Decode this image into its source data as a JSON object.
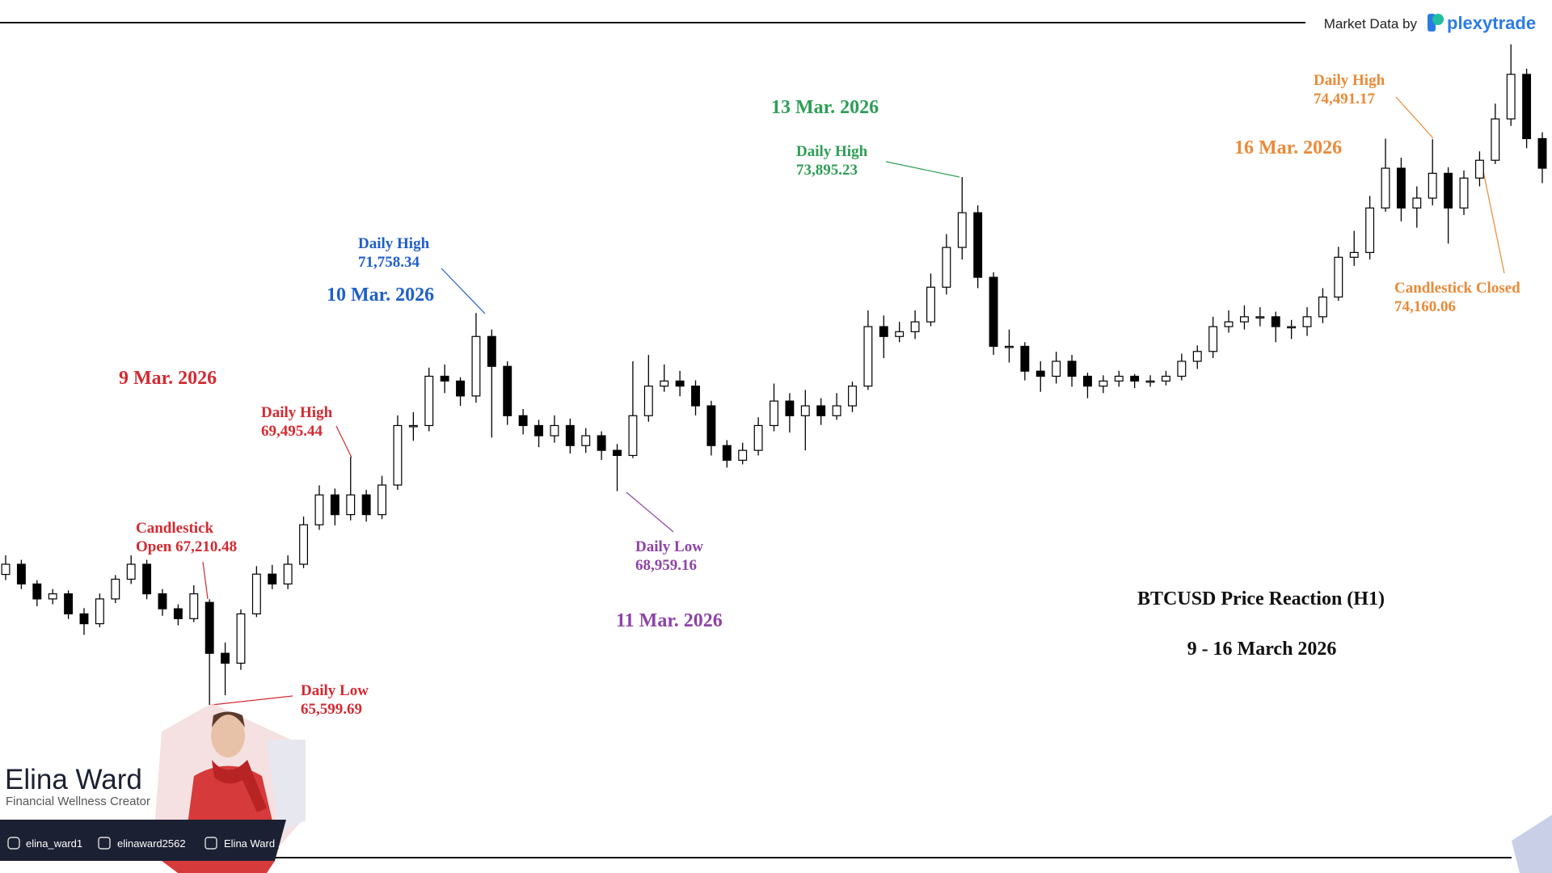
{
  "chart_data": {
    "type": "candlestick",
    "title": "BTCUSD Price Reaction (H1)",
    "subtitle": "9 - 16 March 2026",
    "bull_color": "#ffffff",
    "bear_color": "#000000",
    "edge_color": "#000000",
    "ohlc": [
      [
        67650,
        67950,
        67560,
        67810
      ],
      [
        67810,
        67880,
        67420,
        67500
      ],
      [
        67500,
        67560,
        67150,
        67265
      ],
      [
        67265,
        67420,
        67180,
        67345
      ],
      [
        67345,
        67400,
        66950,
        67030
      ],
      [
        67030,
        67120,
        66700,
        66875
      ],
      [
        66875,
        67350,
        66820,
        67265
      ],
      [
        67265,
        67640,
        67200,
        67575
      ],
      [
        67575,
        67950,
        67500,
        67810
      ],
      [
        67810,
        67880,
        67260,
        67345
      ],
      [
        67345,
        67420,
        67000,
        67110
      ],
      [
        67110,
        67180,
        66850,
        66955
      ],
      [
        66955,
        67480,
        66900,
        67345
      ],
      [
        67210.48,
        67260,
        65599.69,
        66410
      ],
      [
        66410,
        66580,
        65750,
        66255
      ],
      [
        66255,
        67100,
        66150,
        67030
      ],
      [
        67030,
        67780,
        66980,
        67655
      ],
      [
        67655,
        67800,
        67420,
        67500
      ],
      [
        67500,
        67950,
        67420,
        67810
      ],
      [
        67810,
        68560,
        67750,
        68430
      ],
      [
        68430,
        69050,
        68350,
        68900
      ],
      [
        68900,
        69000,
        68420,
        68590
      ],
      [
        68590,
        69495.44,
        68500,
        68900
      ],
      [
        68900,
        68980,
        68480,
        68590
      ],
      [
        68590,
        69200,
        68520,
        69055
      ],
      [
        69055,
        70150,
        68980,
        69990
      ],
      [
        69990,
        70200,
        69750,
        69990
      ],
      [
        69990,
        70900,
        69900,
        70765
      ],
      [
        70765,
        70950,
        70500,
        70690
      ],
      [
        70690,
        70750,
        70300,
        70455
      ],
      [
        70455,
        71758.34,
        70350,
        71390
      ],
      [
        71390,
        71500,
        69800,
        70920
      ],
      [
        70920,
        71000,
        70000,
        70145
      ],
      [
        70145,
        70250,
        69850,
        69990
      ],
      [
        69990,
        70080,
        69650,
        69830
      ],
      [
        69830,
        70150,
        69720,
        69990
      ],
      [
        69990,
        70100,
        69550,
        69675
      ],
      [
        69675,
        69950,
        69560,
        69830
      ],
      [
        69830,
        69900,
        69450,
        69600
      ],
      [
        69600,
        69700,
        68959.16,
        69520
      ],
      [
        69520,
        71000,
        69480,
        70145
      ],
      [
        70145,
        71100,
        70050,
        70610
      ],
      [
        70610,
        70950,
        70520,
        70690
      ],
      [
        70690,
        70850,
        70450,
        70610
      ],
      [
        70610,
        70700,
        70150,
        70300
      ],
      [
        70300,
        70380,
        69520,
        69675
      ],
      [
        69675,
        69760,
        69330,
        69445
      ],
      [
        69445,
        69720,
        69380,
        69600
      ],
      [
        69600,
        70120,
        69520,
        69990
      ],
      [
        69990,
        70650,
        69900,
        70375
      ],
      [
        70375,
        70500,
        69880,
        70145
      ],
      [
        70145,
        70550,
        69600,
        70300
      ],
      [
        70300,
        70420,
        70000,
        70145
      ],
      [
        70145,
        70500,
        70080,
        70300
      ],
      [
        70300,
        70680,
        70200,
        70610
      ],
      [
        70610,
        71800,
        70550,
        71545
      ],
      [
        71545,
        71720,
        71050,
        71390
      ],
      [
        71390,
        71620,
        71300,
        71465
      ],
      [
        71465,
        71800,
        71350,
        71620
      ],
      [
        71620,
        72380,
        71550,
        72165
      ],
      [
        72165,
        73000,
        72050,
        72790
      ],
      [
        72790,
        73895.23,
        72600,
        73335
      ],
      [
        73335,
        73450,
        72150,
        72320
      ],
      [
        72320,
        72400,
        71100,
        71235
      ],
      [
        71235,
        71500,
        70980,
        71235
      ],
      [
        71235,
        71300,
        70700,
        70845
      ],
      [
        70845,
        71000,
        70520,
        70765
      ],
      [
        70765,
        71150,
        70650,
        71000
      ],
      [
        71000,
        71100,
        70600,
        70765
      ],
      [
        70765,
        70820,
        70420,
        70610
      ],
      [
        70610,
        70780,
        70500,
        70690
      ],
      [
        70690,
        70850,
        70600,
        70765
      ],
      [
        70765,
        70800,
        70580,
        70690
      ],
      [
        70690,
        70780,
        70600,
        70690
      ],
      [
        70690,
        70850,
        70620,
        70765
      ],
      [
        70765,
        71120,
        70700,
        71000
      ],
      [
        71000,
        71250,
        70880,
        71155
      ],
      [
        71155,
        71700,
        71050,
        71545
      ],
      [
        71545,
        71800,
        71450,
        71620
      ],
      [
        71620,
        71880,
        71500,
        71700
      ],
      [
        71700,
        71850,
        71550,
        71700
      ],
      [
        71700,
        71780,
        71300,
        71545
      ],
      [
        71545,
        71650,
        71350,
        71545
      ],
      [
        71545,
        71850,
        71400,
        71700
      ],
      [
        71700,
        72150,
        71600,
        72010
      ],
      [
        72010,
        72800,
        71950,
        72635
      ],
      [
        72635,
        73050,
        72500,
        72710
      ],
      [
        72710,
        73600,
        72600,
        73410
      ],
      [
        73410,
        74500,
        73350,
        74035
      ],
      [
        74035,
        74200,
        73200,
        73410
      ],
      [
        73410,
        73750,
        73100,
        73565
      ],
      [
        73565,
        74491.17,
        73450,
        73955
      ],
      [
        73955,
        74050,
        72850,
        73410
      ],
      [
        73410,
        74000,
        73300,
        73880
      ],
      [
        73880,
        74300,
        73750,
        74160.06
      ],
      [
        74160.06,
        75050,
        74100,
        74810
      ],
      [
        74810,
        75980,
        74700,
        75510
      ],
      [
        75510,
        75600,
        74350,
        74500
      ],
      [
        74500,
        74600,
        73800,
        74035
      ]
    ],
    "dates": [
      {
        "text": "9 Mar. 2026",
        "color": "#d42a32"
      },
      {
        "text": "10 Mar. 2026",
        "color": "#1f5fc9"
      },
      {
        "text": "11 Mar. 2026",
        "color": "#8e44a8"
      },
      {
        "text": "13 Mar. 2026",
        "color": "#2e9e55"
      },
      {
        "text": "16 Mar. 2026",
        "color": "#ea8a38"
      }
    ],
    "annotations": [
      {
        "lines": [
          "Daily High",
          "69,495.44"
        ],
        "color": "#d42a32"
      },
      {
        "lines": [
          "Candlestick",
          "Open 67,210.48"
        ],
        "color": "#d42a32"
      },
      {
        "lines": [
          "Daily Low",
          "65,599.69"
        ],
        "color": "#d42a32"
      },
      {
        "lines": [
          "Daily High",
          "71,758.34"
        ],
        "color": "#1f5fc9"
      },
      {
        "lines": [
          "Daily Low",
          "68,959.16"
        ],
        "color": "#8e44a8"
      },
      {
        "lines": [
          "Daily High",
          "73,895.23"
        ],
        "color": "#2e9e55"
      },
      {
        "lines": [
          "Daily High",
          "74,491.17"
        ],
        "color": "#ea8a38"
      },
      {
        "lines": [
          "Candlestick Closed",
          "74,160.06"
        ],
        "color": "#ea8a38"
      }
    ]
  },
  "header": {
    "credit": "Market Data by",
    "brand": "plexytrade"
  },
  "creator": {
    "name": "Elina Ward",
    "role": "Financial Wellness Creator",
    "socials": [
      "elina_ward1",
      "elinaward2562",
      "Elina Ward"
    ]
  }
}
